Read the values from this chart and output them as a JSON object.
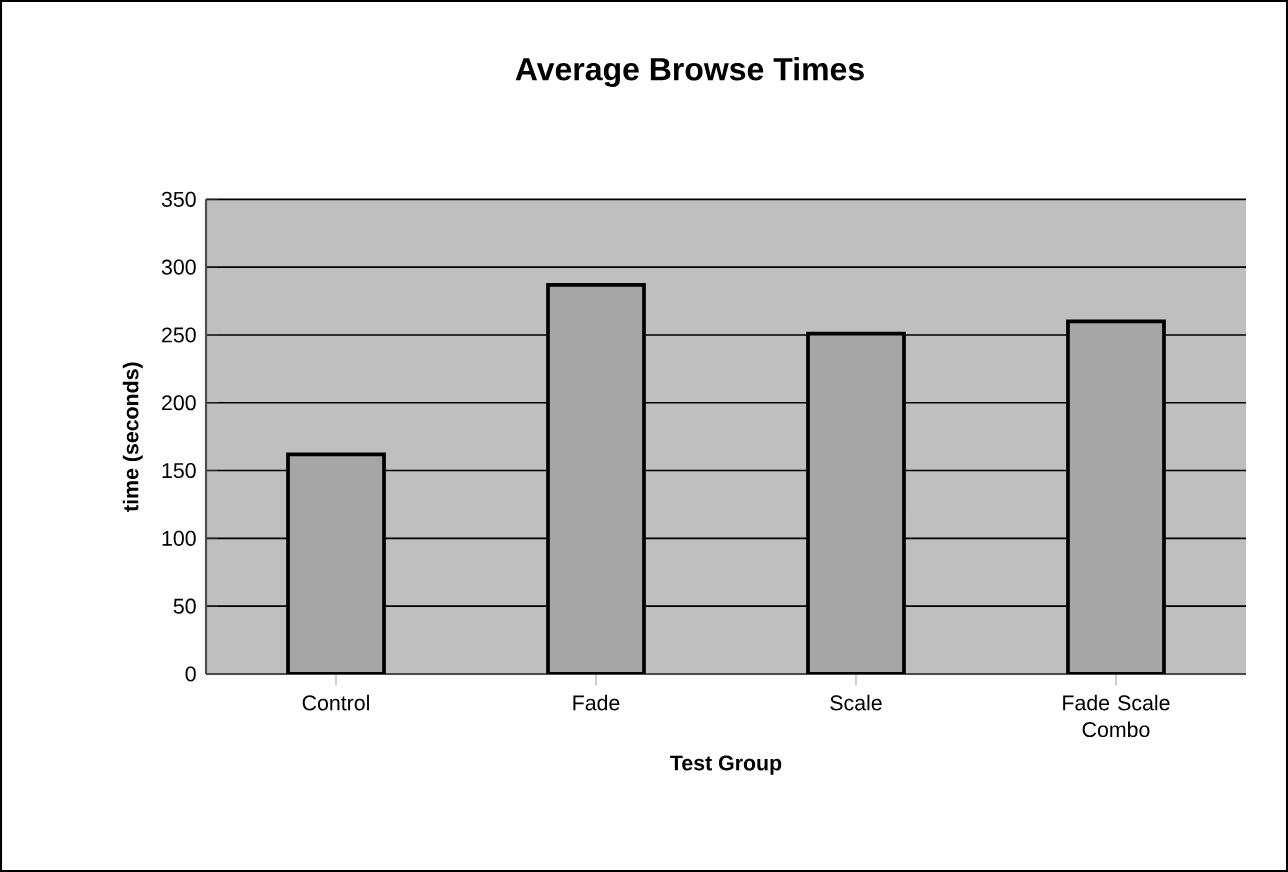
{
  "chart_data": {
    "type": "bar",
    "title": "Average Browse Times",
    "xlabel": "Test Group",
    "ylabel": "time (seconds)",
    "categories": [
      "Control",
      "Fade",
      "Scale",
      "Fade Scale Combo"
    ],
    "values": [
      162,
      287,
      251,
      260
    ],
    "color": "#a6a6a6",
    "ylim": [
      0,
      350
    ],
    "yticks": [
      0,
      50,
      100,
      150,
      200,
      250,
      300,
      350
    ],
    "grid": "y"
  }
}
